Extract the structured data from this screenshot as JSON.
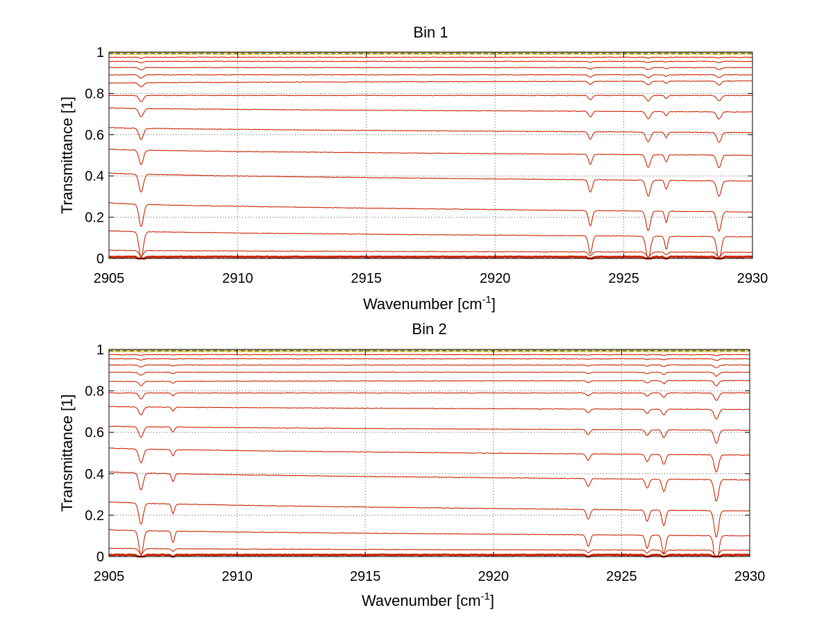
{
  "chart_data": [
    {
      "type": "line",
      "title": "Bin 1",
      "xlabel": "Wavenumber [cm",
      "xlabel_sup": "-1",
      "xlabel_close": "]",
      "ylabel": "Transmittance [1]",
      "xlim": [
        2905,
        2930
      ],
      "ylim": [
        0,
        1
      ],
      "xticks": [
        2905,
        2910,
        2915,
        2920,
        2925,
        2930
      ],
      "xtick_labels": [
        "2905",
        "2910",
        "2915",
        "2920",
        "2925",
        "2930"
      ],
      "yticks": [
        0,
        0.2,
        0.4,
        0.6,
        0.8,
        1
      ],
      "ytick_labels": [
        "0",
        "0.2",
        "0.4",
        "0.6",
        "0.8",
        "1"
      ],
      "grid": true,
      "series_color": "#cc2200",
      "top_band_colors": [
        "#ff9900",
        "#ffb300",
        "#3366cc",
        "#66aa33"
      ],
      "absorption_lines": [
        {
          "x": 2906.25,
          "width": 0.12,
          "strength": 0.8
        },
        {
          "x": 2923.7,
          "width": 0.1,
          "strength": 0.55
        },
        {
          "x": 2925.95,
          "width": 0.12,
          "strength": 0.7
        },
        {
          "x": 2926.65,
          "width": 0.08,
          "strength": 0.4
        },
        {
          "x": 2928.7,
          "width": 0.12,
          "strength": 0.7
        }
      ],
      "series": [
        {
          "start": 0.998,
          "end": 0.998
        },
        {
          "start": 0.99,
          "end": 0.99
        },
        {
          "start": 0.975,
          "end": 0.975
        },
        {
          "start": 0.955,
          "end": 0.955
        },
        {
          "start": 0.925,
          "end": 0.925
        },
        {
          "start": 0.89,
          "end": 0.89
        },
        {
          "start": 0.85,
          "end": 0.86
        },
        {
          "start": 0.79,
          "end": 0.79
        },
        {
          "start": 0.73,
          "end": 0.71
        },
        {
          "start": 0.635,
          "end": 0.61
        },
        {
          "start": 0.53,
          "end": 0.5
        },
        {
          "start": 0.415,
          "end": 0.375
        },
        {
          "start": 0.27,
          "end": 0.225
        },
        {
          "start": 0.135,
          "end": 0.105
        },
        {
          "start": 0.04,
          "end": 0.03
        },
        {
          "start": 0.008,
          "end": 0.008
        }
      ]
    },
    {
      "type": "line",
      "title": "Bin 2",
      "xlabel": "Wavenumber [cm",
      "xlabel_sup": "-1",
      "xlabel_close": "]",
      "ylabel": "Transmittance [1]",
      "xlim": [
        2905,
        2930
      ],
      "ylim": [
        0,
        1
      ],
      "xticks": [
        2905,
        2910,
        2915,
        2920,
        2925,
        2930
      ],
      "xtick_labels": [
        "2905",
        "2910",
        "2915",
        "2920",
        "2925",
        "2930"
      ],
      "yticks": [
        0,
        0.2,
        0.4,
        0.6,
        0.8,
        1
      ],
      "ytick_labels": [
        "0",
        "0.2",
        "0.4",
        "0.6",
        "0.8",
        "1"
      ],
      "grid": true,
      "series_color": "#cc2200",
      "top_band_colors": [
        "#ff9900",
        "#ffb300",
        "#3366cc",
        "#66aa33"
      ],
      "absorption_lines": [
        {
          "x": 2906.25,
          "width": 0.12,
          "strength": 0.75
        },
        {
          "x": 2907.5,
          "width": 0.08,
          "strength": 0.35
        },
        {
          "x": 2923.7,
          "width": 0.1,
          "strength": 0.35
        },
        {
          "x": 2926.0,
          "width": 0.1,
          "strength": 0.4
        },
        {
          "x": 2926.65,
          "width": 0.1,
          "strength": 0.55
        },
        {
          "x": 2928.7,
          "width": 0.12,
          "strength": 0.95
        }
      ],
      "series": [
        {
          "start": 0.998,
          "end": 0.998
        },
        {
          "start": 0.99,
          "end": 0.99
        },
        {
          "start": 0.975,
          "end": 0.975
        },
        {
          "start": 0.955,
          "end": 0.955
        },
        {
          "start": 0.925,
          "end": 0.925
        },
        {
          "start": 0.89,
          "end": 0.89
        },
        {
          "start": 0.845,
          "end": 0.85
        },
        {
          "start": 0.79,
          "end": 0.79
        },
        {
          "start": 0.725,
          "end": 0.71
        },
        {
          "start": 0.63,
          "end": 0.61
        },
        {
          "start": 0.525,
          "end": 0.49
        },
        {
          "start": 0.41,
          "end": 0.37
        },
        {
          "start": 0.265,
          "end": 0.22
        },
        {
          "start": 0.13,
          "end": 0.1
        },
        {
          "start": 0.04,
          "end": 0.03
        },
        {
          "start": 0.008,
          "end": 0.008
        }
      ]
    }
  ]
}
